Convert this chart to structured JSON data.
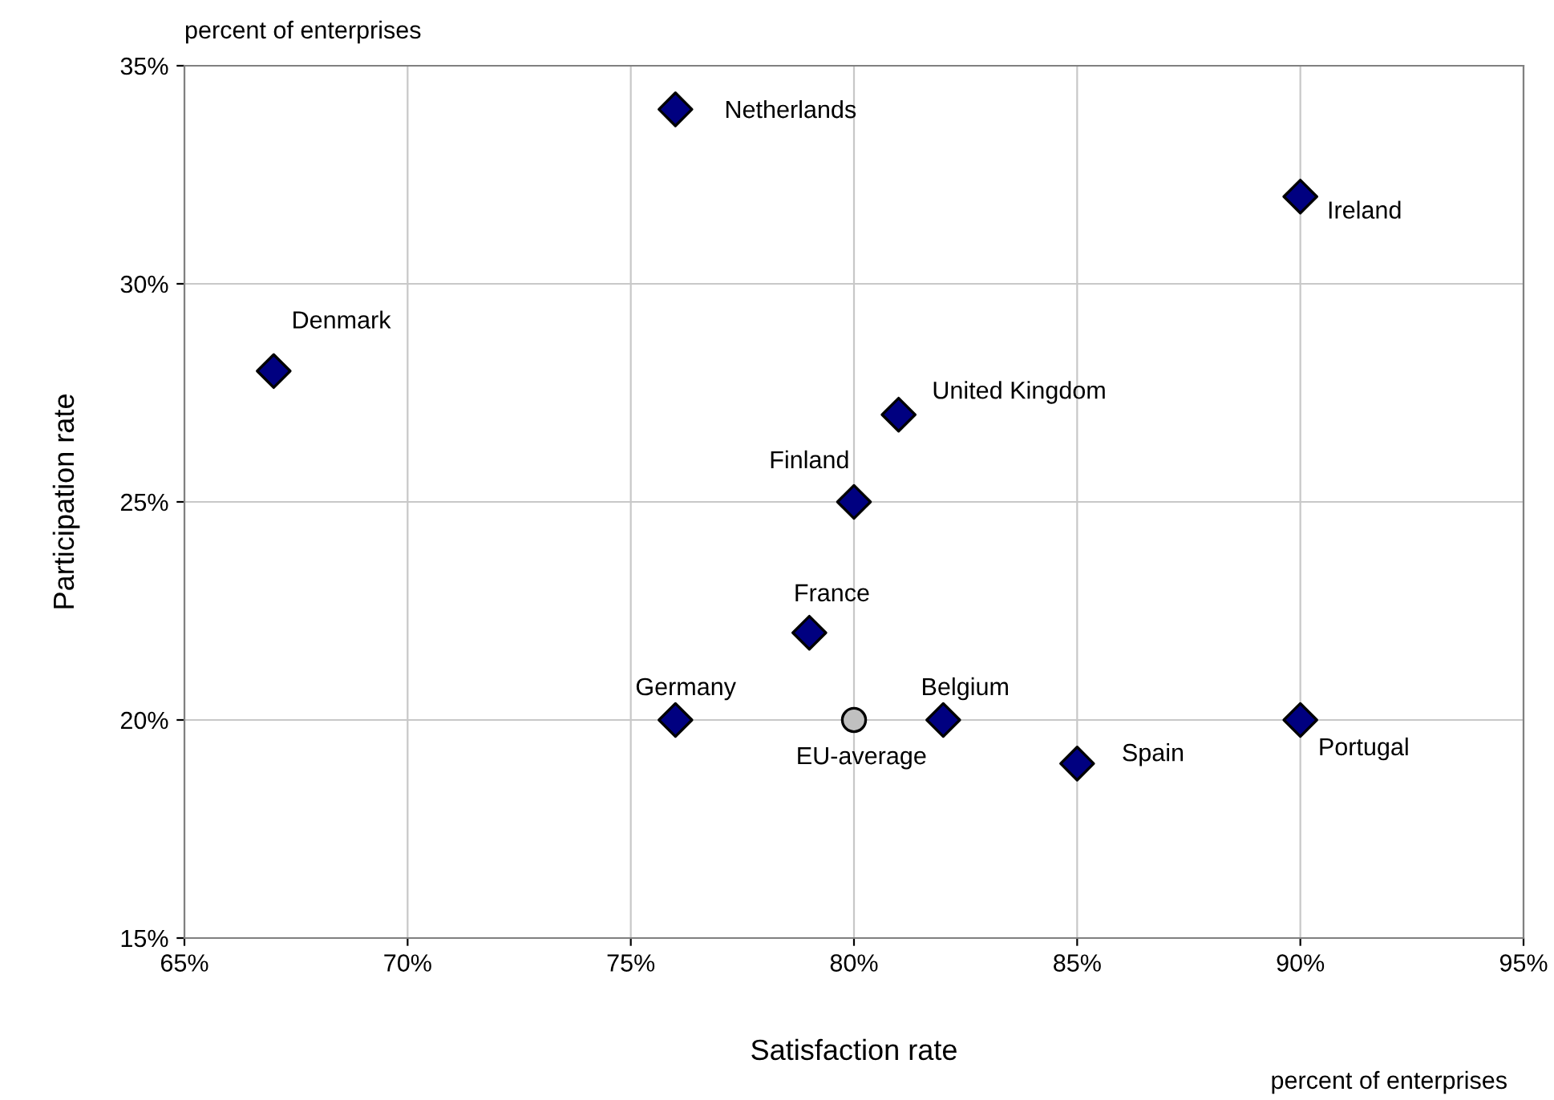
{
  "chart_data": {
    "type": "scatter",
    "xlabel": "Satisfaction rate",
    "ylabel": "Participation rate",
    "annotations": [
      "percent of enterprises",
      "percent of enterprises"
    ],
    "xlim": [
      65,
      95
    ],
    "ylim": [
      15,
      35
    ],
    "xticks": [
      {
        "value": 65,
        "label": "65%"
      },
      {
        "value": 70,
        "label": "70%"
      },
      {
        "value": 75,
        "label": "75%"
      },
      {
        "value": 80,
        "label": "80%"
      },
      {
        "value": 85,
        "label": "85%"
      },
      {
        "value": 90,
        "label": "90%"
      },
      {
        "value": 95,
        "label": "95%"
      }
    ],
    "yticks": [
      {
        "value": 15,
        "label": "15%"
      },
      {
        "value": 20,
        "label": "20%"
      },
      {
        "value": 25,
        "label": "25%"
      },
      {
        "value": 30,
        "label": "30%"
      },
      {
        "value": 35,
        "label": "35%"
      }
    ],
    "grid": true,
    "legend": false,
    "series": [
      {
        "name": "Denmark",
        "color": "#000080",
        "marker": "diamond",
        "x": [
          67
        ],
        "values": [
          28
        ]
      },
      {
        "name": "Netherlands",
        "color": "#000080",
        "marker": "diamond",
        "x": [
          76
        ],
        "values": [
          34
        ]
      },
      {
        "name": "Ireland",
        "color": "#000080",
        "marker": "diamond",
        "x": [
          90
        ],
        "values": [
          32
        ]
      },
      {
        "name": "United Kingdom",
        "color": "#000080",
        "marker": "diamond",
        "x": [
          81
        ],
        "values": [
          27
        ]
      },
      {
        "name": "Finland",
        "color": "#000080",
        "marker": "diamond",
        "x": [
          80
        ],
        "values": [
          25
        ]
      },
      {
        "name": "France",
        "color": "#000080",
        "marker": "diamond",
        "x": [
          79
        ],
        "values": [
          22
        ]
      },
      {
        "name": "Germany",
        "color": "#000080",
        "marker": "diamond",
        "x": [
          76
        ],
        "values": [
          20
        ]
      },
      {
        "name": "EU-average",
        "color": "#c0c0c0",
        "marker": "circle",
        "x": [
          80
        ],
        "values": [
          20
        ]
      },
      {
        "name": "Belgium",
        "color": "#000080",
        "marker": "diamond",
        "x": [
          82
        ],
        "values": [
          20
        ]
      },
      {
        "name": "Spain",
        "color": "#000080",
        "marker": "diamond",
        "x": [
          85
        ],
        "values": [
          19
        ]
      },
      {
        "name": "Portugal",
        "color": "#000080",
        "marker": "diamond",
        "x": [
          90
        ],
        "values": [
          20
        ]
      }
    ]
  }
}
